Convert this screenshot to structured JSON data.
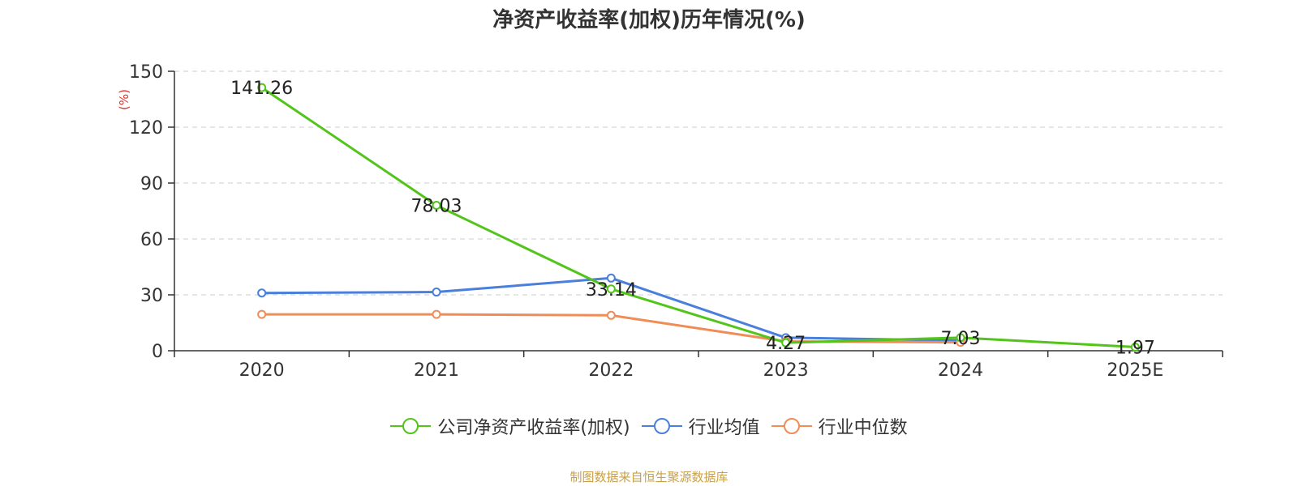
{
  "chart_data": {
    "type": "line",
    "title": "净资产收益率(加权)历年情况(%)",
    "ylabel": "(%)",
    "xlabel": "",
    "ylim": [
      0,
      150
    ],
    "yticks": [
      0,
      30,
      60,
      90,
      120,
      150
    ],
    "grid": true,
    "legend_position": "bottom",
    "categories": [
      "2020",
      "2021",
      "2022",
      "2023",
      "2024",
      "2025E"
    ],
    "series": [
      {
        "name": "公司净资产收益率(加权)",
        "color": "#52c41a",
        "values": [
          141.26,
          78.03,
          33.14,
          4.27,
          7.03,
          1.97
        ],
        "labels": [
          "141.26",
          "78.03",
          "33.14",
          "4.27",
          "7.03",
          "1.97"
        ]
      },
      {
        "name": "行业均值",
        "color": "#4a7fdc",
        "values": [
          31.0,
          31.5,
          39.0,
          7.0,
          5.5,
          null
        ]
      },
      {
        "name": "行业中位数",
        "color": "#f08c55",
        "values": [
          19.5,
          19.5,
          19.0,
          5.0,
          4.5,
          null
        ]
      }
    ]
  },
  "source_text": "制图数据来自恒生聚源数据库"
}
